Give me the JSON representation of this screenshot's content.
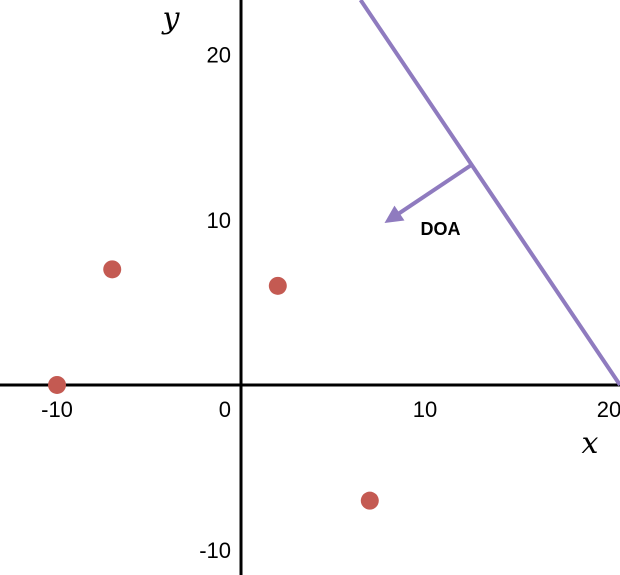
{
  "chart_data": {
    "type": "scatter",
    "title": "",
    "xlabel": "x",
    "ylabel": "y",
    "xlim": [
      -13.1,
      20.6
    ],
    "ylim": [
      -11.5,
      23.3
    ],
    "grid": false,
    "x_ticks": [
      -10,
      0,
      10,
      20
    ],
    "x_tick_labels": [
      "-10",
      "0",
      "10",
      "20"
    ],
    "y_ticks": [
      -10,
      10,
      20
    ],
    "y_tick_labels": [
      "-10",
      "10",
      "20"
    ],
    "points": [
      {
        "x": -10,
        "y": 0
      },
      {
        "x": -7,
        "y": 7
      },
      {
        "x": 2,
        "y": 6
      },
      {
        "x": 7,
        "y": -7
      }
    ],
    "boundary_line": {
      "from": {
        "x": 6.5,
        "y": 23.3
      },
      "to": {
        "x": 20.6,
        "y": 0
      }
    },
    "arrow": {
      "from": {
        "x": 12.5,
        "y": 13.3
      },
      "to": {
        "x": 7.8,
        "y": 9.8
      },
      "label": "DOA"
    },
    "colors": {
      "points": "#c45a52",
      "line": "#8f7bbf",
      "axes": "#000000"
    }
  }
}
